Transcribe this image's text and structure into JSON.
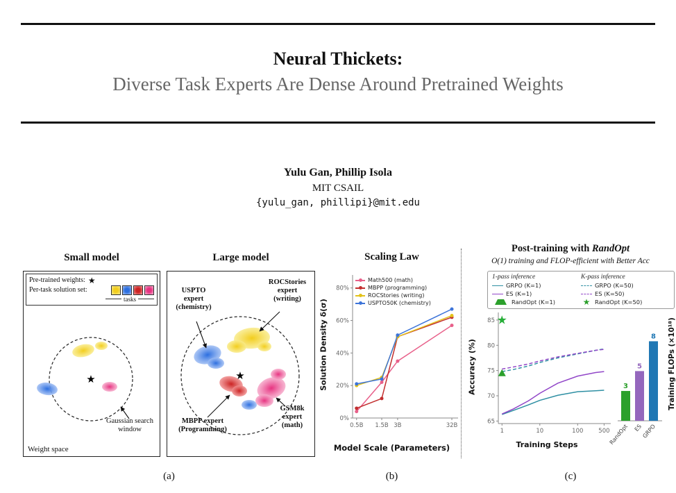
{
  "page": {
    "bg": "#ffffff",
    "rule_color": "#111111"
  },
  "header": {
    "title": "Neural Thickets:",
    "subtitle": "Diverse Task Experts Are Dense Around Pretrained Weights"
  },
  "authors": {
    "names": "Yulu Gan, Phillip Isola",
    "affiliation": "MIT CSAIL",
    "emails": "{yulu_gan, phillipi}@mit.edu"
  },
  "figure": {
    "captions": {
      "a": "(a)",
      "b": "(b)",
      "c": "(c)"
    },
    "panel_a": {
      "small_model": {
        "title": "Small model",
        "legend_pretrained_label": "Pre-trained weights:",
        "star_glyph": "★",
        "legend_solution_label": "Per-task solution set:",
        "tasks_label": "tasks",
        "gaussian_window_label": "Gaussian search window",
        "weight_space_label": "Weight space"
      },
      "large_model": {
        "title": "Large model",
        "uspto_label": "USPTO expert (chemistry)",
        "rocstories_label": "ROCStories expert (writing)",
        "mbpp_label": "MBPP expert (Programming)",
        "gsm8k_label": "GSM8k expert (math)"
      },
      "task_colors": {
        "yellow": {
          "center": "#f2cd1d",
          "edge": "#f9eb8a"
        },
        "blue": {
          "center": "#2d6fe0",
          "edge": "#9dbcf3"
        },
        "red": {
          "center": "#cc2424",
          "edge": "#f09090"
        },
        "pink": {
          "center": "#e73381",
          "edge": "#f6abcb"
        }
      }
    }
  },
  "chart_data": [
    {
      "id": "scaling-law",
      "type": "line",
      "title": "Scaling Law",
      "xlabel": "Model Scale (Parameters)",
      "ylabel": "Solution Density δ(σ)",
      "x_scale": "log",
      "x_values": [
        0.5,
        1.5,
        3,
        32
      ],
      "x_ticks": [
        "0.5B",
        "1.5B",
        "3B",
        "32B"
      ],
      "y_ticks": [
        "0%",
        "20%",
        "40%",
        "60%",
        "80%"
      ],
      "ylim": [
        0,
        88
      ],
      "legend_position": "upper left",
      "series": [
        {
          "name": "Math500 (math)",
          "color": "#e8608a",
          "values": [
            4,
            22,
            35,
            57
          ]
        },
        {
          "name": "MBPP (programming)",
          "color": "#c22e2e",
          "values": [
            6,
            12,
            50,
            62
          ]
        },
        {
          "name": "ROCStories (writing)",
          "color": "#e3c219",
          "values": [
            20,
            25,
            50,
            63
          ]
        },
        {
          "name": "USPTO50K (chemistry)",
          "color": "#3d74d9",
          "values": [
            21,
            24,
            51,
            67
          ]
        }
      ]
    },
    {
      "id": "post-training",
      "type": "line",
      "title_prefix": "Post-training with ",
      "title_italic": "RandOpt",
      "subtitle": "O(1) training and FLOP-efficient with Better Acc",
      "xlabel": "Training Steps",
      "ylabel": "Accuracy (%)",
      "x_scale": "log",
      "x_ticks": [
        1,
        10,
        100,
        500
      ],
      "y_ticks": [
        65,
        70,
        75,
        80,
        85
      ],
      "ylim": [
        64.5,
        86.5
      ],
      "legend_groups": [
        {
          "header": "1-pass inference",
          "items": [
            {
              "label": "GRPO (K=1)",
              "color": "#2e8fa3",
              "marker": "line-solid"
            },
            {
              "label": "ES (K=1)",
              "color": "#9146c8",
              "marker": "line-solid"
            },
            {
              "label": "RandOpt (K=1)",
              "color": "#2ca02c",
              "marker": "triangle"
            }
          ]
        },
        {
          "header": "K-pass inference",
          "items": [
            {
              "label": "GRPO (K=50)",
              "color": "#2e8fa3",
              "marker": "line-dashed"
            },
            {
              "label": "ES (K=50)",
              "color": "#9146c8",
              "marker": "line-dashed"
            },
            {
              "label": "RandOpt (K=50)",
              "color": "#2ca02c",
              "marker": "star"
            }
          ]
        }
      ],
      "series": [
        {
          "name": "GRPO (K=1)",
          "style": "solid",
          "color": "#2e8fa3",
          "x": [
            1,
            2,
            5,
            10,
            30,
            100,
            300,
            500
          ],
          "values": [
            66.3,
            67.1,
            68.2,
            69.1,
            70.1,
            70.8,
            71.0,
            71.1
          ]
        },
        {
          "name": "ES (K=1)",
          "style": "solid",
          "color": "#9146c8",
          "x": [
            1,
            2,
            5,
            10,
            30,
            100,
            300,
            500
          ],
          "values": [
            66.4,
            67.4,
            69.0,
            70.5,
            72.5,
            73.9,
            74.6,
            74.8
          ]
        },
        {
          "name": "GRPO (K=50)",
          "style": "dashed",
          "color": "#2e8fa3",
          "x": [
            1,
            2,
            5,
            10,
            30,
            100,
            300,
            500
          ],
          "values": [
            74.8,
            75.2,
            75.9,
            76.6,
            77.5,
            78.3,
            79.0,
            79.3
          ]
        },
        {
          "name": "ES (K=50)",
          "style": "dashed",
          "color": "#9146c8",
          "x": [
            1,
            2,
            5,
            10,
            30,
            100,
            300,
            500
          ],
          "values": [
            75.3,
            75.7,
            76.3,
            76.9,
            77.7,
            78.4,
            79.0,
            79.2
          ]
        }
      ],
      "points": [
        {
          "name": "RandOpt (K=1)",
          "marker": "triangle",
          "color": "#2ca02c",
          "x": 1,
          "y": 74.5
        },
        {
          "name": "RandOpt (K=50)",
          "marker": "star",
          "color": "#27ae38",
          "x": 1,
          "y": 85
        }
      ]
    },
    {
      "id": "training-flops",
      "type": "bar",
      "ylabel": "Training FLOPs (×10¹⁸)",
      "categories": [
        "RandOpt",
        "ES",
        "GRPO"
      ],
      "values": [
        3,
        5,
        8
      ],
      "colors": [
        "#2ca02c",
        "#9467bd",
        "#1f77b4"
      ],
      "ylim": [
        0,
        8.8
      ]
    }
  ]
}
